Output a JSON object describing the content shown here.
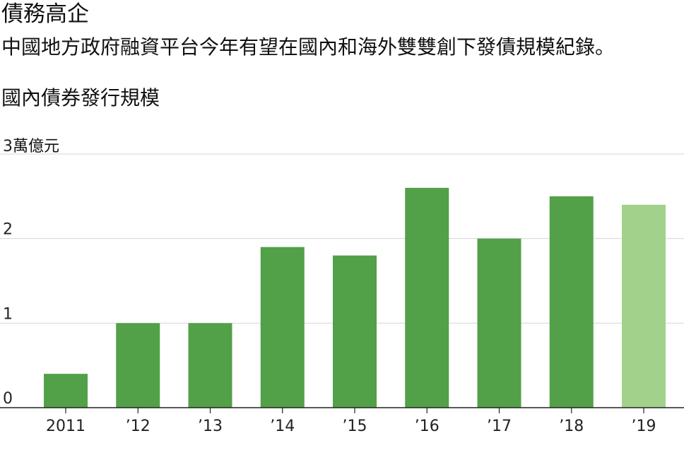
{
  "header": {
    "title": "債務高企",
    "subtitle": "中國地方政府融資平台今年有望在國內和海外雙雙創下發債規模紀錄。",
    "chart_heading": "國內債券發行規模"
  },
  "colors": {
    "bar": "#52a047",
    "bar_highlight": "#a2d18c",
    "grid": "#d4d4d4",
    "axis": "#222222"
  },
  "chart_data": {
    "type": "bar",
    "title": "國內債券發行規模",
    "unit_label": "萬億元",
    "categories": [
      "2011",
      "’12",
      "’13",
      "’14",
      "’15",
      "’16",
      "’17",
      "’18",
      "’19"
    ],
    "values": [
      0.4,
      1.0,
      1.0,
      1.9,
      1.8,
      2.6,
      2.0,
      2.5,
      2.4
    ],
    "highlight": [
      "’19"
    ],
    "y_ticks": [
      "0",
      "1",
      "2",
      "3"
    ],
    "ylim": [
      0,
      3
    ],
    "grid": true
  }
}
